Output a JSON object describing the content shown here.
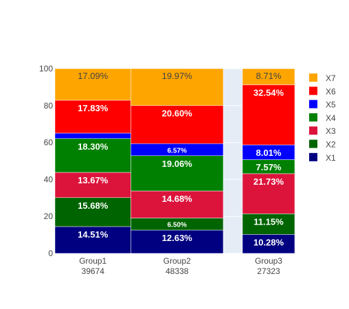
{
  "chart_data": {
    "type": "bar",
    "stacking": "stacked-percent",
    "categories": [
      {
        "name": "Group1",
        "total": "39674",
        "width_weight": 39674
      },
      {
        "name": "Group2",
        "total": "48338",
        "width_weight": 48338
      },
      {
        "name": "Group3",
        "total": "27323",
        "width_weight": 27323
      }
    ],
    "series": [
      {
        "name": "X1",
        "color": "#000080",
        "values": [
          14.51,
          12.63,
          10.28
        ],
        "labels": [
          "14.51%",
          "12.63%",
          "10.28%"
        ]
      },
      {
        "name": "X2",
        "color": "#006400",
        "values": [
          15.68,
          6.5,
          11.15
        ],
        "labels": [
          "15.68%",
          "6.50%",
          "11.15%"
        ]
      },
      {
        "name": "X3",
        "color": "#dc143c",
        "values": [
          13.67,
          14.68,
          21.73
        ],
        "labels": [
          "13.67%",
          "14.68%",
          "21.73%"
        ]
      },
      {
        "name": "X4",
        "color": "#008000",
        "values": [
          18.3,
          19.06,
          7.57
        ],
        "labels": [
          "18.30%",
          "19.06%",
          "7.57%"
        ]
      },
      {
        "name": "X5",
        "color": "#0000ff",
        "values": [
          2.92,
          6.57,
          8.01
        ],
        "labels": [
          "",
          "6.57%",
          "8.01%"
        ]
      },
      {
        "name": "X6",
        "color": "#ff0000",
        "values": [
          17.83,
          20.6,
          32.54
        ],
        "labels": [
          "17.83%",
          "20.60%",
          "32.54%"
        ]
      },
      {
        "name": "X7",
        "color": "#ffa500",
        "values": [
          17.09,
          19.97,
          8.71
        ],
        "labels": [
          "17.09%",
          "19.97%",
          "8.71%"
        ]
      }
    ],
    "y_ticks": [
      "0",
      "20",
      "40",
      "60",
      "80",
      "100"
    ],
    "ylim": [
      0,
      100
    ],
    "grid": true,
    "legend_placement": "top-right",
    "legend_order": [
      "X7",
      "X6",
      "X5",
      "X4",
      "X3",
      "X2",
      "X1"
    ],
    "plot_background": "#e5ecf6",
    "label_colors": {
      "light": "#ffffff",
      "dark": "#444444"
    }
  }
}
